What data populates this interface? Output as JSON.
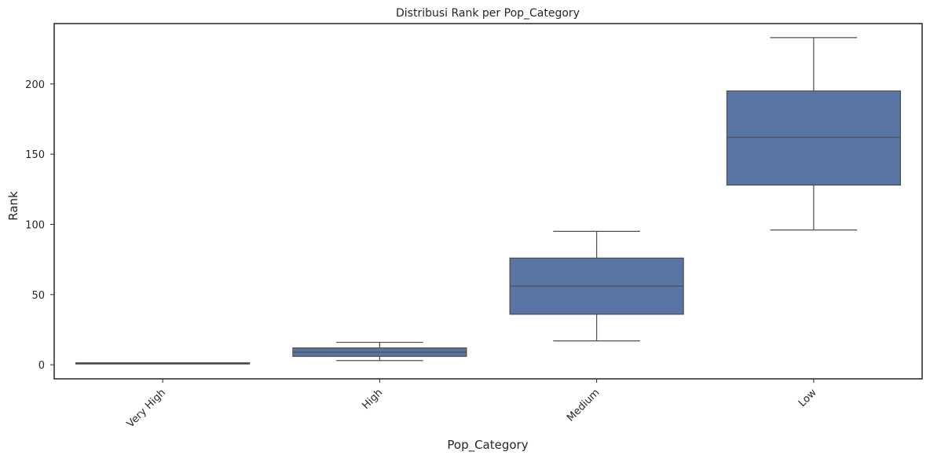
{
  "chart_data": {
    "type": "box",
    "title": "Distribusi Rank per Pop_Category",
    "xlabel": "Pop_Category",
    "ylabel": "Rank",
    "ylim": [
      -10,
      243
    ],
    "yticks": [
      0,
      50,
      100,
      150,
      200
    ],
    "categories": [
      "Very High",
      "High",
      "Medium",
      "Low"
    ],
    "boxes": [
      {
        "category": "Very High",
        "whislo": 1,
        "q1": 1,
        "med": 1,
        "q3": 1,
        "whishi": 1
      },
      {
        "category": "High",
        "whislo": 3,
        "q1": 6,
        "med": 9,
        "q3": 12,
        "whishi": 16
      },
      {
        "category": "Medium",
        "whislo": 17,
        "q1": 36,
        "med": 56,
        "q3": 76,
        "whishi": 95
      },
      {
        "category": "Low",
        "whislo": 96,
        "q1": 128,
        "med": 162,
        "q3": 195,
        "whishi": 233
      }
    ],
    "box_color": "#5875a4",
    "line_color": "#4d4d4d",
    "grid": false,
    "xtick_rotation_deg": 45
  }
}
